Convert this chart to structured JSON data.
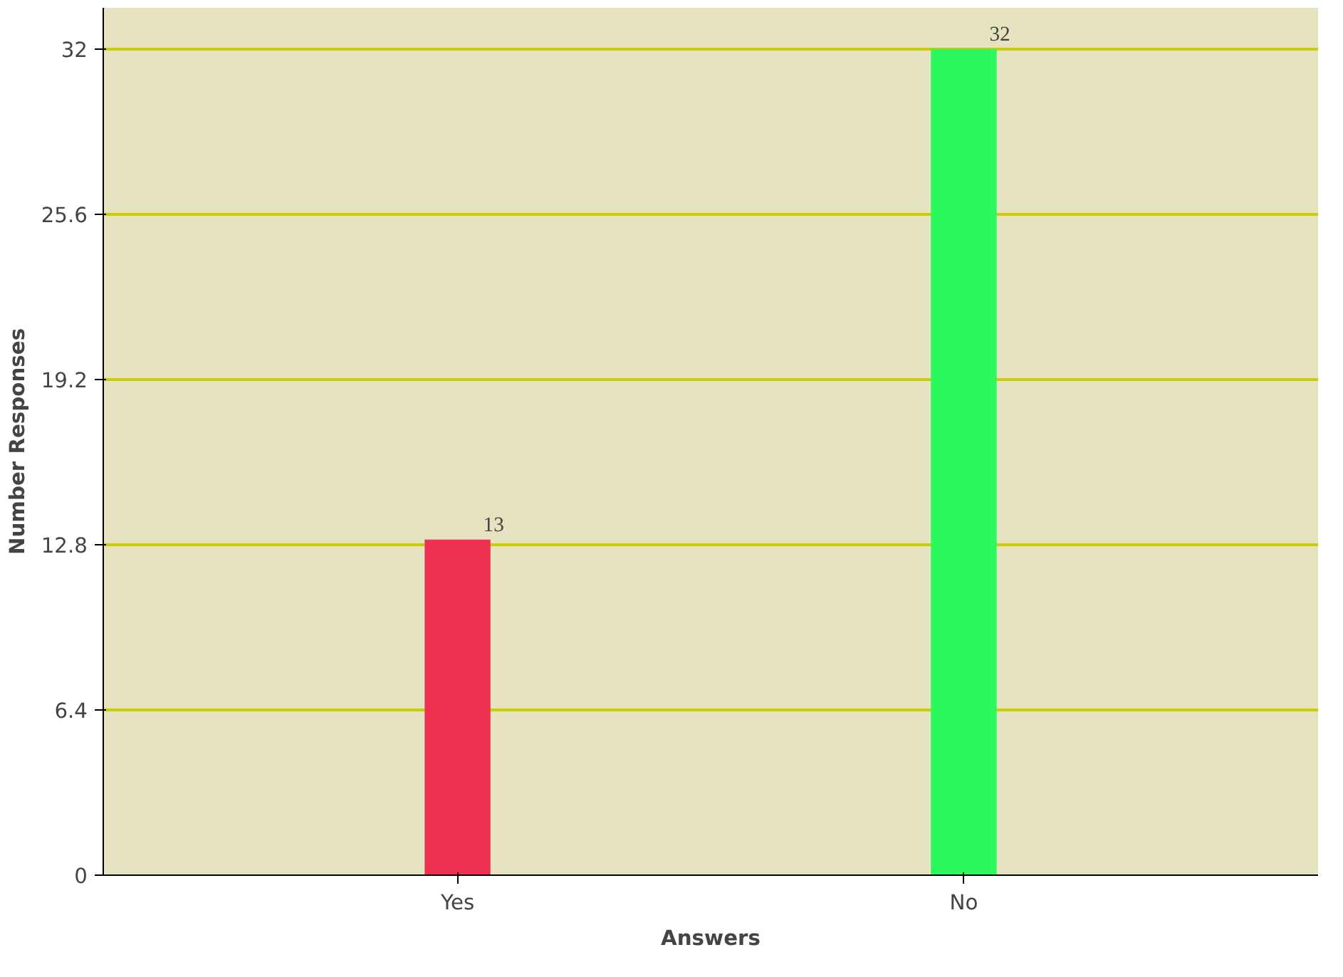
{
  "chart_data": {
    "type": "bar",
    "xlabel": "Answers",
    "ylabel": "Number Responses",
    "categories": [
      "Yes",
      "No"
    ],
    "values": [
      13,
      32
    ],
    "colors": [
      "#ee3150",
      "#2cf75c"
    ],
    "ylim": [
      0,
      32
    ],
    "yticks": [
      0,
      6.4,
      12.8,
      19.2,
      25.6,
      32
    ],
    "grid": "y",
    "data_labels": true
  }
}
